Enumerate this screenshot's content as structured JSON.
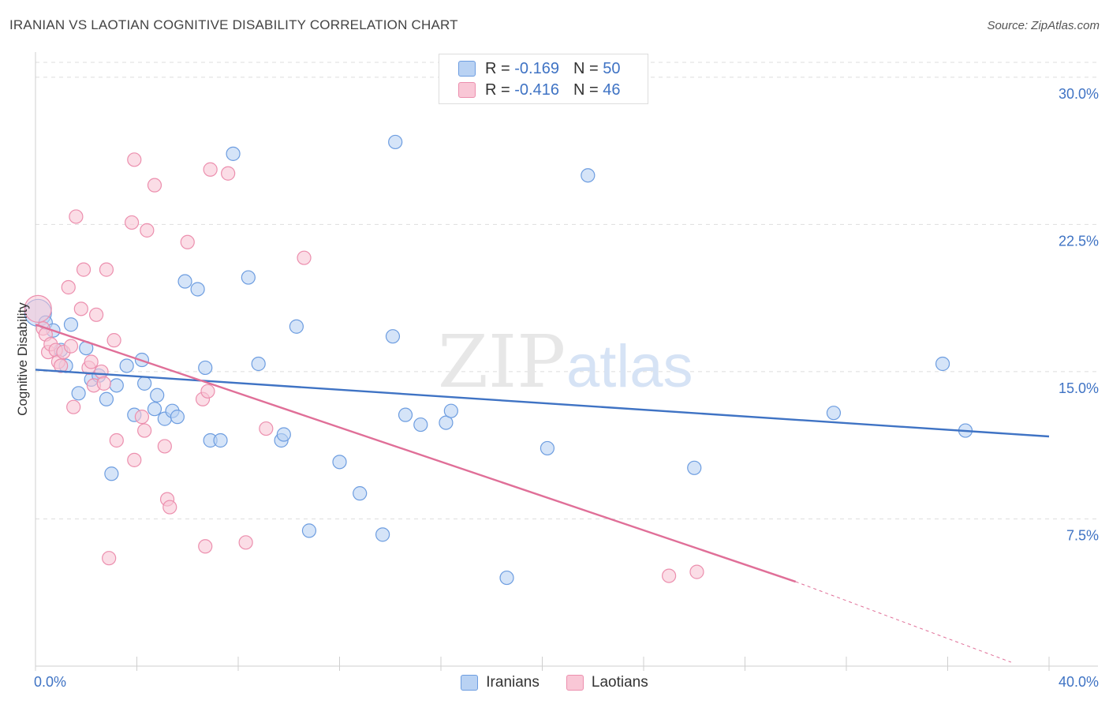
{
  "header": {
    "title": "IRANIAN VS LAOTIAN COGNITIVE DISABILITY CORRELATION CHART",
    "source": "Source: ZipAtlas.com"
  },
  "watermark": {
    "zip": "ZIP",
    "atlas": "atlas"
  },
  "legend": {
    "r_label": "R =",
    "n_label": "N =",
    "rows": [
      {
        "r": "-0.169",
        "n": "50",
        "fill": "#b9d2f3",
        "stroke": "#6d9de0"
      },
      {
        "r": "-0.416",
        "n": "46",
        "fill": "#f9c7d6",
        "stroke": "#ec8fae"
      }
    ]
  },
  "bottom_legend": [
    {
      "label": "Iranians",
      "fill": "#b9d2f3",
      "stroke": "#6d9de0"
    },
    {
      "label": "Laotians",
      "fill": "#f9c7d6",
      "stroke": "#ec8fae"
    }
  ],
  "chart_data": {
    "type": "scatter",
    "title": "IRANIAN VS LAOTIAN COGNITIVE DISABILITY CORRELATION CHART",
    "xlabel": "",
    "ylabel": "Cognitive Disability",
    "xlim": [
      0,
      40
    ],
    "ylim": [
      0,
      31
    ],
    "x_tick_labels": {
      "left": "0.0%",
      "right": "40.0%"
    },
    "y_ticks": [
      {
        "value": 7.5,
        "label": "7.5%"
      },
      {
        "value": 15.0,
        "label": "15.0%"
      },
      {
        "value": 22.5,
        "label": "22.5%"
      },
      {
        "value": 30.0,
        "label": "30.0%"
      }
    ],
    "grid": "horizontal dashed",
    "colors": {
      "iranians": "#3f73c4",
      "laotians": "#e06f98",
      "axis_text": "#3f73c4"
    },
    "series": [
      {
        "name": "Iranians",
        "color": "#6d9de0",
        "fill": "#b9d2f3",
        "trend": {
          "x": [
            0,
            40
          ],
          "y": [
            15.1,
            11.7
          ]
        },
        "points": [
          [
            0.1,
            18.0
          ],
          [
            0.4,
            17.5
          ],
          [
            0.7,
            17.1
          ],
          [
            1.0,
            16.1
          ],
          [
            1.2,
            15.3
          ],
          [
            1.4,
            17.4
          ],
          [
            1.7,
            13.9
          ],
          [
            2.0,
            16.2
          ],
          [
            2.2,
            14.6
          ],
          [
            2.5,
            14.8
          ],
          [
            2.8,
            13.6
          ],
          [
            3.0,
            9.8
          ],
          [
            3.2,
            14.3
          ],
          [
            3.6,
            15.3
          ],
          [
            3.9,
            12.8
          ],
          [
            4.2,
            15.6
          ],
          [
            4.3,
            14.4
          ],
          [
            4.7,
            13.1
          ],
          [
            4.8,
            13.8
          ],
          [
            5.1,
            12.6
          ],
          [
            5.4,
            13.0
          ],
          [
            5.6,
            12.7
          ],
          [
            5.9,
            19.6
          ],
          [
            6.4,
            19.2
          ],
          [
            6.7,
            15.2
          ],
          [
            6.9,
            11.5
          ],
          [
            7.3,
            11.5
          ],
          [
            7.8,
            26.1
          ],
          [
            8.4,
            19.8
          ],
          [
            8.8,
            15.4
          ],
          [
            9.7,
            11.5
          ],
          [
            9.8,
            11.8
          ],
          [
            10.3,
            17.3
          ],
          [
            10.8,
            6.9
          ],
          [
            12.0,
            10.4
          ],
          [
            12.8,
            8.8
          ],
          [
            13.7,
            6.7
          ],
          [
            14.1,
            16.8
          ],
          [
            14.2,
            26.7
          ],
          [
            14.6,
            12.8
          ],
          [
            15.2,
            12.3
          ],
          [
            16.2,
            12.4
          ],
          [
            16.4,
            13.0
          ],
          [
            18.6,
            4.5
          ],
          [
            20.2,
            11.1
          ],
          [
            21.8,
            25.0
          ],
          [
            26.0,
            10.1
          ],
          [
            31.5,
            12.9
          ],
          [
            35.8,
            15.4
          ],
          [
            36.7,
            12.0
          ]
        ]
      },
      {
        "name": "Laotians",
        "color": "#ec8fae",
        "fill": "#f9c7d6",
        "trend": {
          "x": [
            0,
            30
          ],
          "y": [
            17.4,
            4.3
          ]
        },
        "trend_extension": {
          "x": [
            30,
            38.5
          ],
          "y": [
            4.3,
            0.2
          ]
        },
        "points": [
          [
            0.1,
            18.2
          ],
          [
            0.3,
            17.2
          ],
          [
            0.4,
            16.9
          ],
          [
            0.5,
            16.0
          ],
          [
            0.6,
            16.4
          ],
          [
            0.8,
            16.1
          ],
          [
            0.9,
            15.5
          ],
          [
            1.0,
            15.3
          ],
          [
            1.1,
            16.0
          ],
          [
            1.3,
            19.3
          ],
          [
            1.4,
            16.3
          ],
          [
            1.5,
            13.2
          ],
          [
            1.6,
            22.9
          ],
          [
            1.8,
            18.2
          ],
          [
            1.9,
            20.2
          ],
          [
            2.1,
            15.2
          ],
          [
            2.2,
            15.5
          ],
          [
            2.3,
            14.3
          ],
          [
            2.4,
            17.9
          ],
          [
            2.6,
            15.0
          ],
          [
            2.7,
            14.4
          ],
          [
            2.8,
            20.2
          ],
          [
            2.9,
            5.5
          ],
          [
            3.1,
            16.6
          ],
          [
            3.2,
            11.5
          ],
          [
            3.8,
            22.6
          ],
          [
            3.9,
            25.8
          ],
          [
            3.9,
            10.5
          ],
          [
            4.2,
            12.7
          ],
          [
            4.3,
            12.0
          ],
          [
            4.4,
            22.2
          ],
          [
            4.7,
            24.5
          ],
          [
            5.1,
            11.2
          ],
          [
            5.2,
            8.5
          ],
          [
            5.3,
            8.1
          ],
          [
            6.0,
            21.6
          ],
          [
            6.6,
            13.6
          ],
          [
            6.7,
            6.1
          ],
          [
            6.8,
            14.0
          ],
          [
            6.9,
            25.3
          ],
          [
            7.6,
            25.1
          ],
          [
            8.3,
            6.3
          ],
          [
            9.1,
            12.1
          ],
          [
            10.6,
            20.8
          ],
          [
            25.0,
            4.6
          ],
          [
            26.1,
            4.8
          ]
        ]
      }
    ]
  }
}
